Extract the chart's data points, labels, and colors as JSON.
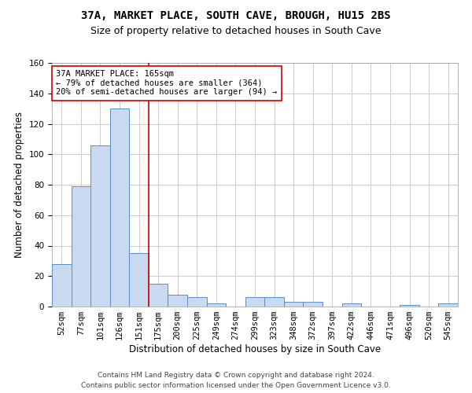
{
  "title": "37A, MARKET PLACE, SOUTH CAVE, BROUGH, HU15 2BS",
  "subtitle": "Size of property relative to detached houses in South Cave",
  "xlabel": "Distribution of detached houses by size in South Cave",
  "ylabel": "Number of detached properties",
  "categories": [
    "52sqm",
    "77sqm",
    "101sqm",
    "126sqm",
    "151sqm",
    "175sqm",
    "200sqm",
    "225sqm",
    "249sqm",
    "274sqm",
    "299sqm",
    "323sqm",
    "348sqm",
    "372sqm",
    "397sqm",
    "422sqm",
    "446sqm",
    "471sqm",
    "496sqm",
    "520sqm",
    "545sqm"
  ],
  "values": [
    28,
    79,
    106,
    130,
    35,
    15,
    8,
    6,
    2,
    0,
    6,
    6,
    3,
    3,
    0,
    2,
    0,
    0,
    1,
    0,
    2
  ],
  "bar_color": "#c9d9f0",
  "bar_edge_color": "#5b8dc8",
  "vline_x": 4.5,
  "vline_color": "#cc0000",
  "annotation_text": "37A MARKET PLACE: 165sqm\n← 79% of detached houses are smaller (364)\n20% of semi-detached houses are larger (94) →",
  "annotation_box_color": "#ffffff",
  "annotation_box_edge": "#cc0000",
  "ylim": [
    0,
    160
  ],
  "yticks": [
    0,
    20,
    40,
    60,
    80,
    100,
    120,
    140,
    160
  ],
  "grid_color": "#cccccc",
  "background_color": "#ffffff",
  "footer": "Contains HM Land Registry data © Crown copyright and database right 2024.\nContains public sector information licensed under the Open Government Licence v3.0.",
  "title_fontsize": 10,
  "subtitle_fontsize": 9,
  "xlabel_fontsize": 8.5,
  "ylabel_fontsize": 8.5,
  "tick_fontsize": 7.5,
  "annotation_fontsize": 7.5,
  "footer_fontsize": 6.5
}
